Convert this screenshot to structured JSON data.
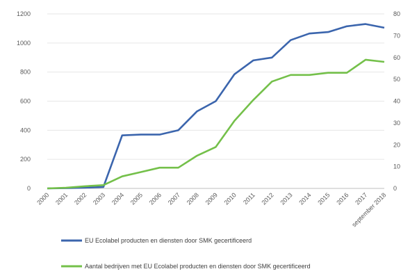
{
  "chart_data": {
    "type": "line",
    "title": "",
    "x": [
      "2000",
      "2001",
      "2002",
      "2003",
      "2004",
      "2005",
      "2006",
      "2007",
      "2008",
      "2009",
      "2010",
      "2011",
      "2012",
      "2013",
      "2014",
      "2015",
      "2016",
      "2017",
      "september 2018"
    ],
    "y_left": {
      "ylim": [
        0,
        1200
      ],
      "ticks": [
        0,
        200,
        400,
        600,
        800,
        1000,
        1200
      ]
    },
    "y_right": {
      "ylim": [
        0,
        80
      ],
      "ticks": [
        0,
        10,
        20,
        30,
        40,
        50,
        60,
        70,
        80
      ]
    },
    "grid": true,
    "legend_position": "bottom",
    "series": [
      {
        "name": "EU Ecolabel producten en diensten door SMK gecertificeerd",
        "axis": "left",
        "color": "#3b65ad",
        "values": [
          0,
          2,
          5,
          10,
          365,
          370,
          370,
          400,
          530,
          600,
          785,
          880,
          900,
          1020,
          1065,
          1075,
          1115,
          1130,
          1105
        ]
      },
      {
        "name": "Aantal bedrijven met EU Ecolabel producten en diensten door SMK gecertificeerd",
        "axis": "right",
        "color": "#74c04a",
        "values": [
          0,
          0.3,
          1,
          1.5,
          5.5,
          7.5,
          9.5,
          9.5,
          15,
          19,
          31,
          40.5,
          49,
          52,
          52,
          53,
          53,
          59,
          58
        ]
      }
    ]
  }
}
